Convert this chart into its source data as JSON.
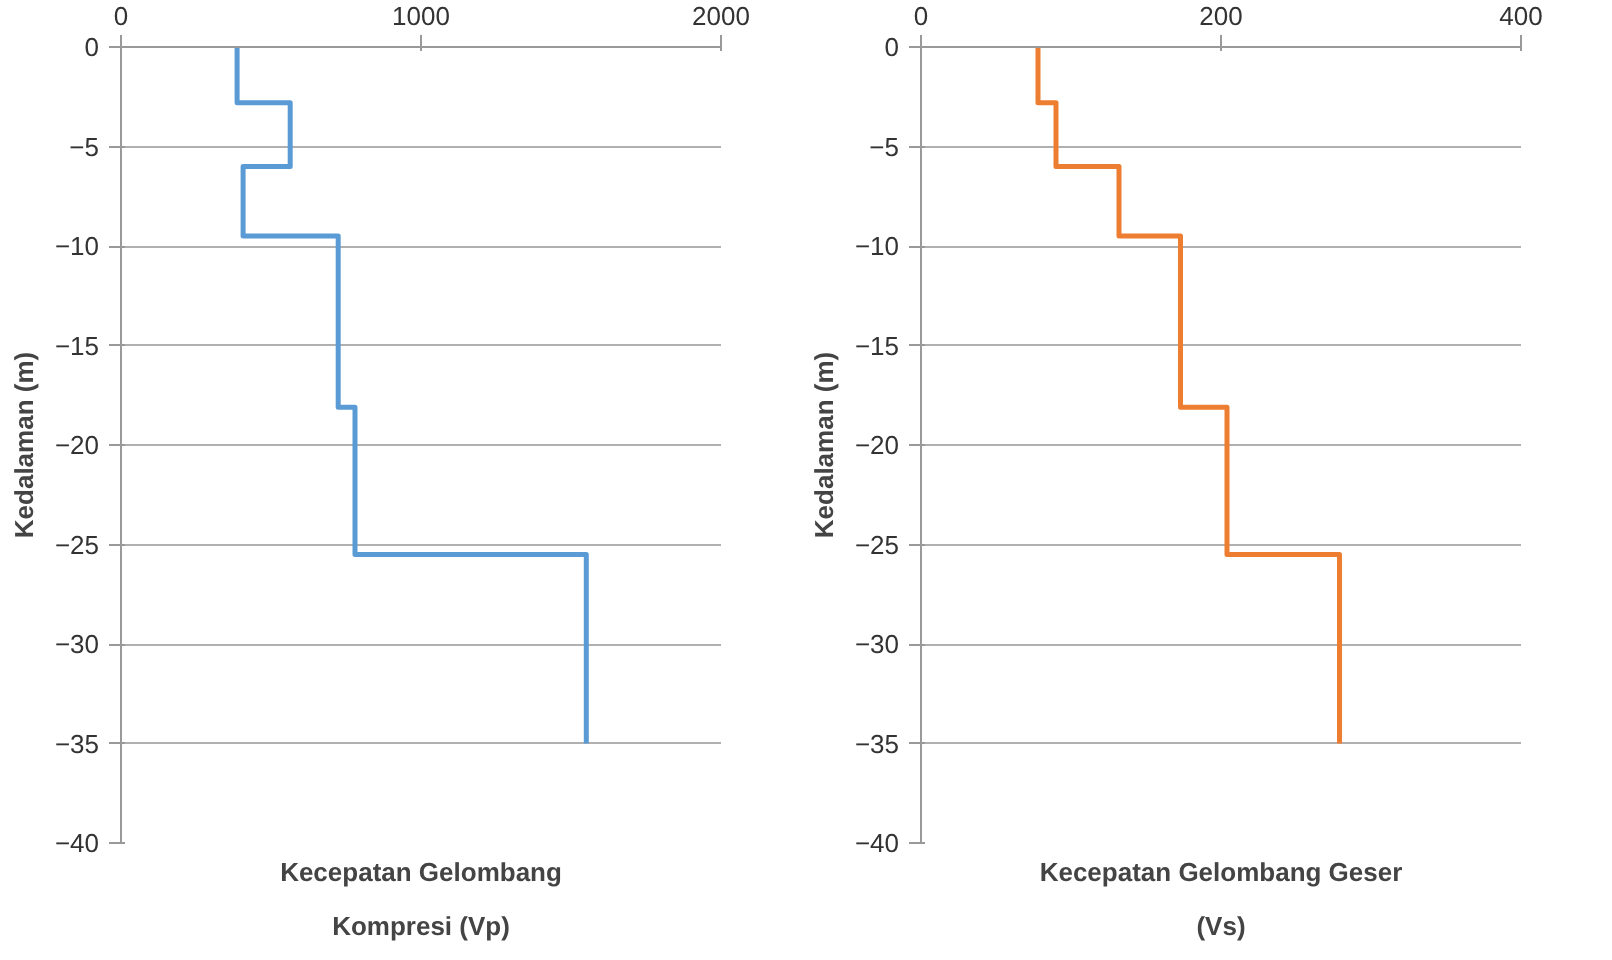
{
  "chart_data": [
    {
      "type": "line",
      "xlabel": "Kecepatan Gelombang Kompresi (Vp)",
      "ylabel": "Kedalaman (m)",
      "xlim": [
        0,
        2000
      ],
      "xticks": [
        0,
        1000,
        2000
      ],
      "ylim": [
        -40,
        0
      ],
      "yticks": [
        -40,
        -35,
        -30,
        -25,
        -20,
        -15,
        -10,
        -5,
        0
      ],
      "grid": "y",
      "marker": "none",
      "line_style": "solid",
      "series": [
        {
          "color": "#5b9bd5",
          "x": [
            387,
            387,
            564,
            564,
            407,
            407,
            724,
            724,
            780,
            780,
            1551,
            1551
          ],
          "values": [
            0,
            -2.8,
            -2.8,
            -6,
            -6,
            -9.5,
            -9.5,
            -18.1,
            -18.1,
            -25.5,
            -25.5,
            -35
          ]
        }
      ]
    },
    {
      "type": "line",
      "xlabel": "Kecepatan Gelombang Geser (Vs)",
      "ylabel": "Kedalaman (m)",
      "xlim": [
        0,
        400
      ],
      "xticks": [
        0,
        200,
        400
      ],
      "ylim": [
        -40,
        0
      ],
      "yticks": [
        -40,
        -35,
        -30,
        -25,
        -20,
        -15,
        -10,
        -5,
        0
      ],
      "grid": "y",
      "marker": "none",
      "line_style": "solid",
      "series": [
        {
          "color": "#ed7d31",
          "x": [
            78,
            78,
            90,
            90,
            132,
            132,
            173,
            173,
            204,
            204,
            279,
            279
          ],
          "values": [
            0,
            -2.8,
            -2.8,
            -6,
            -6,
            -9.5,
            -9.5,
            -18.1,
            -18.1,
            -25.5,
            -25.5,
            -35
          ]
        }
      ]
    }
  ]
}
